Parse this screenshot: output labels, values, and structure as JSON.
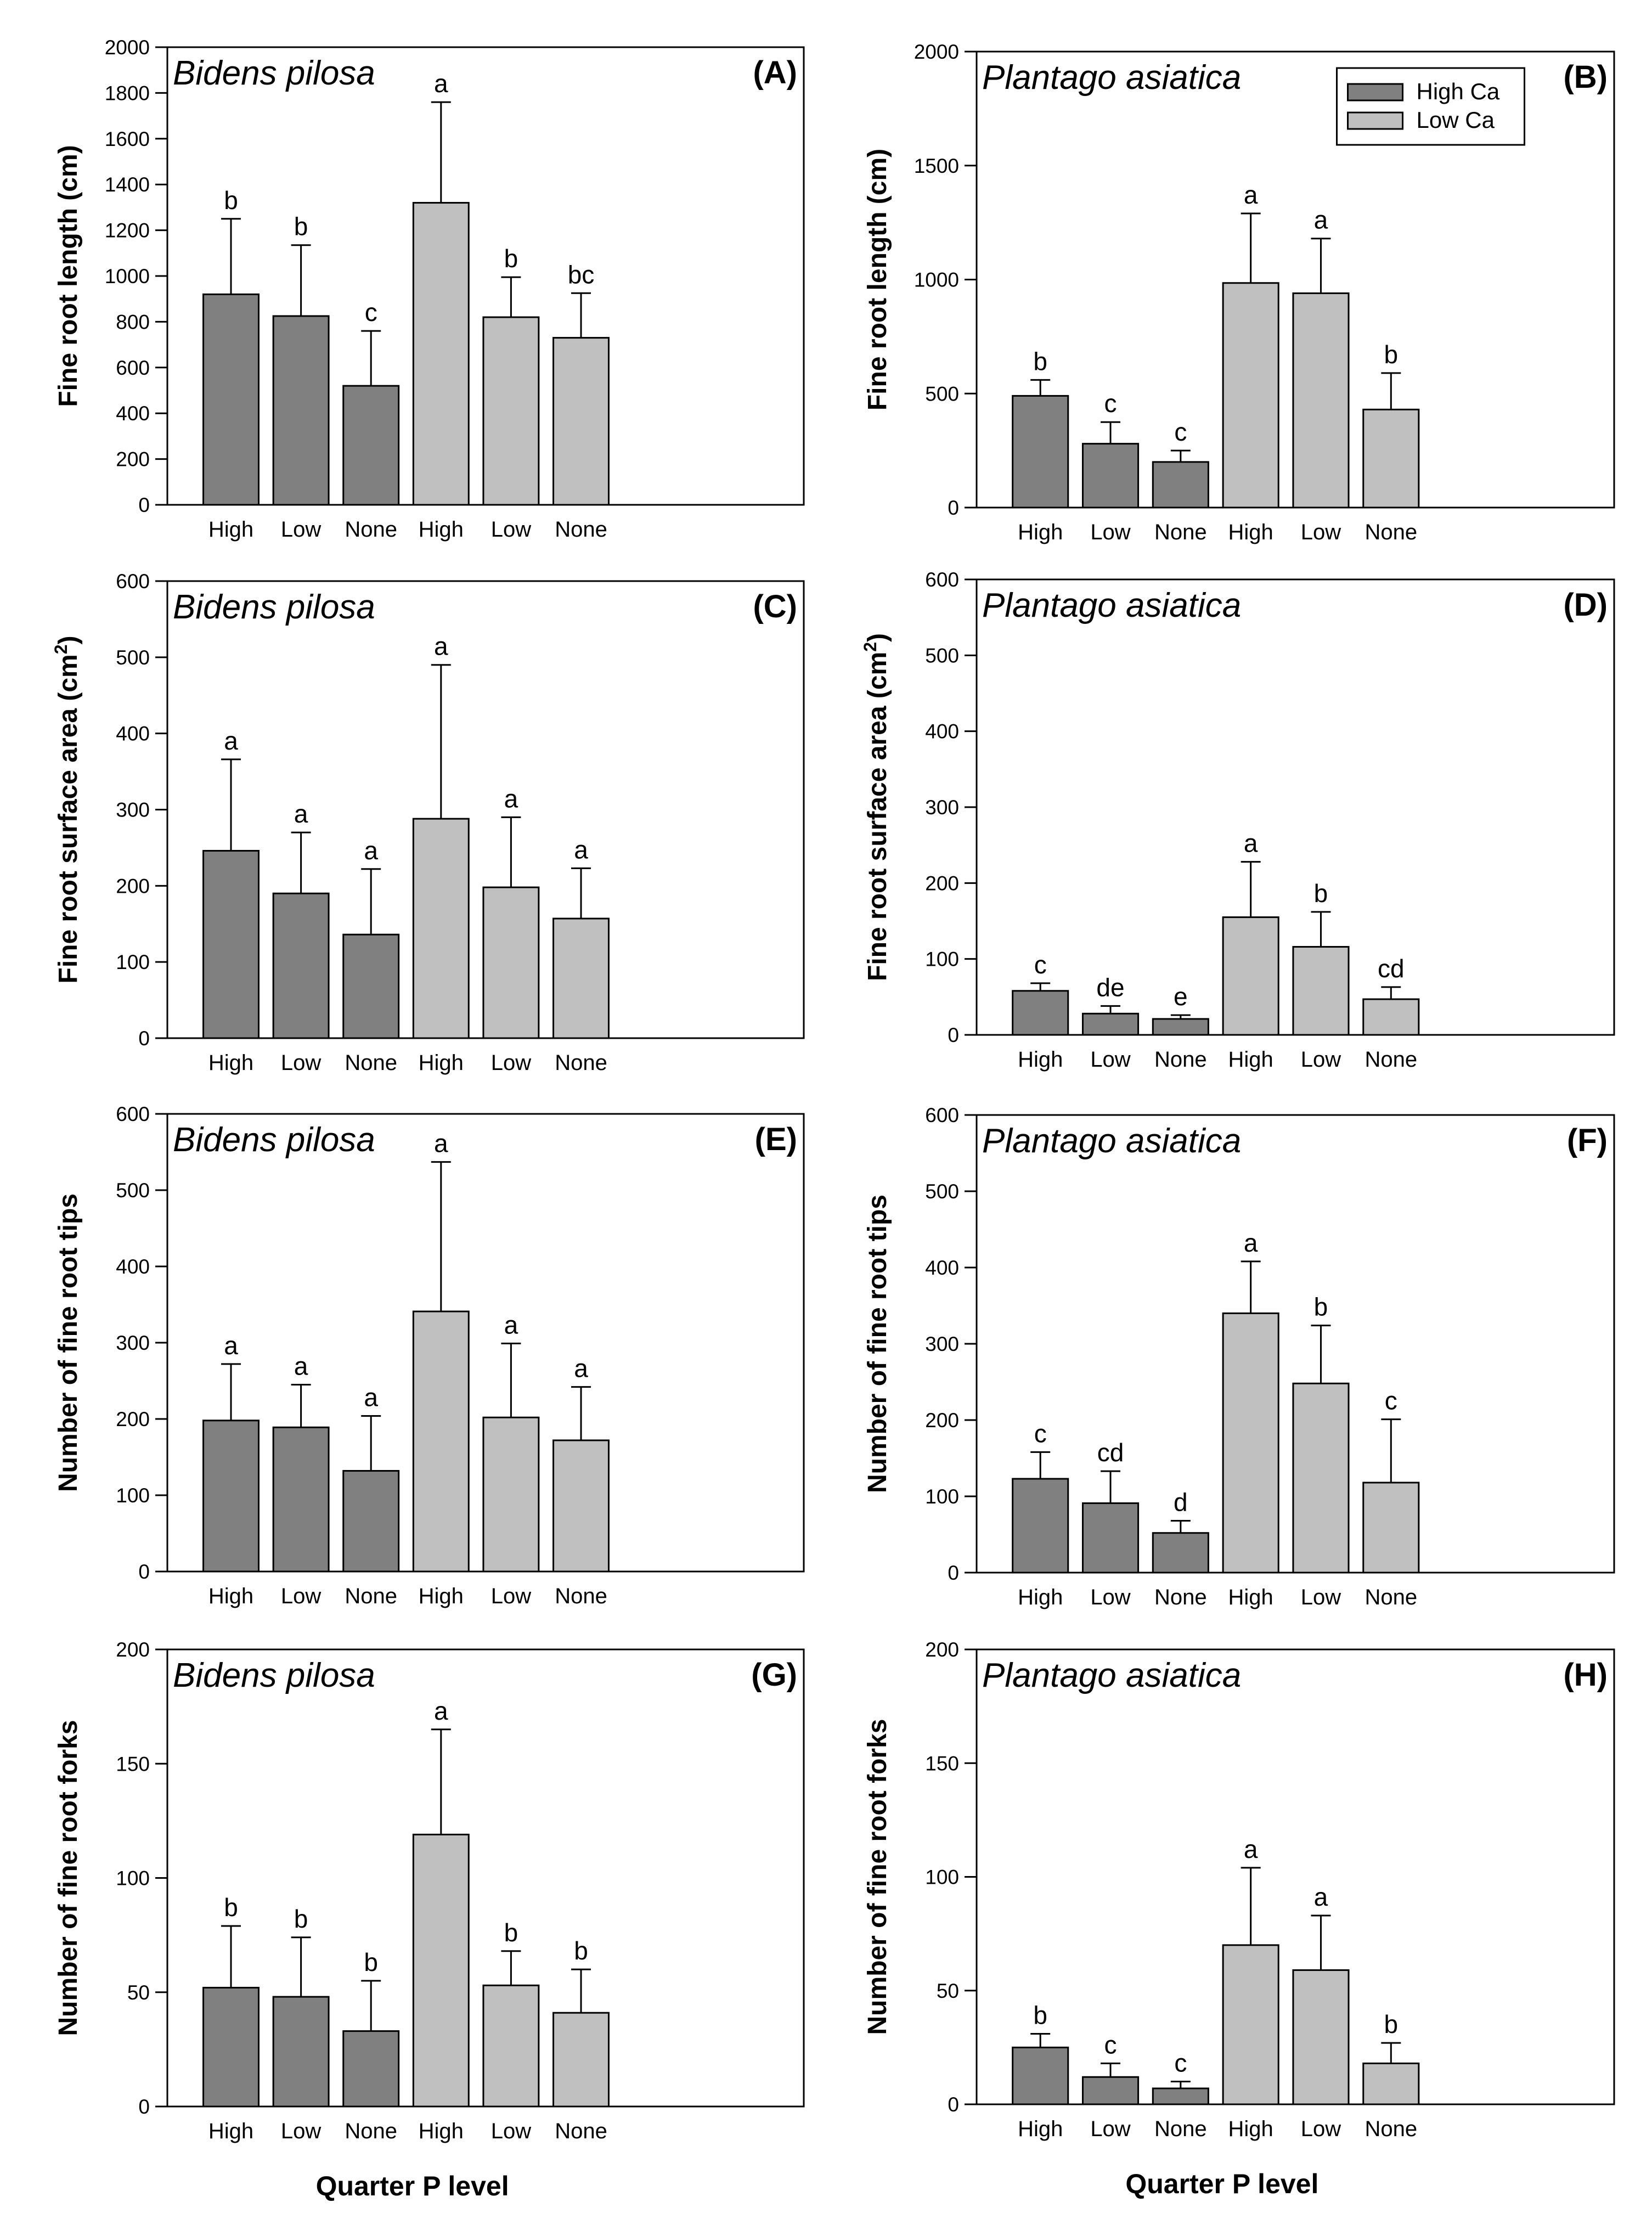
{
  "colors": {
    "high_ca": "#808080",
    "low_ca": "#c0c0c0"
  },
  "legend": {
    "entries": [
      {
        "label": "High Ca",
        "color": "#808080"
      },
      {
        "label": "Low Ca",
        "color": "#c0c0c0"
      }
    ]
  },
  "x_axis_title": "Quarter P level",
  "chart_data": [
    {
      "type": "bar",
      "panel": "(A)",
      "species": "Bidens pilosa",
      "ylabel": "Fine root length (cm)",
      "xlabel": "",
      "categories": [
        "High",
        "Low",
        "None",
        "High",
        "Low",
        "None"
      ],
      "groups": [
        "High Ca",
        "High Ca",
        "High Ca",
        "Low Ca",
        "Low Ca",
        "Low Ca"
      ],
      "values": [
        920,
        825,
        520,
        1320,
        820,
        730
      ],
      "errors": [
        330,
        310,
        240,
        440,
        175,
        195
      ],
      "letters": [
        "b",
        "b",
        "c",
        "a",
        "b",
        "bc"
      ],
      "ylim": [
        0,
        2000
      ],
      "yticks": [
        0,
        200,
        400,
        600,
        800,
        1000,
        1200,
        1400,
        1600,
        1800,
        2000
      ]
    },
    {
      "type": "bar",
      "panel": "(B)",
      "species": "Plantago asiatica",
      "ylabel": "Fine root length (cm)",
      "xlabel": "",
      "categories": [
        "High",
        "Low",
        "None",
        "High",
        "Low",
        "None"
      ],
      "groups": [
        "High Ca",
        "High Ca",
        "High Ca",
        "Low Ca",
        "Low Ca",
        "Low Ca"
      ],
      "values": [
        490,
        280,
        200,
        985,
        940,
        430
      ],
      "errors": [
        70,
        95,
        50,
        305,
        240,
        160
      ],
      "letters": [
        "b",
        "c",
        "c",
        "a",
        "a",
        "b"
      ],
      "ylim": [
        0,
        2000
      ],
      "yticks": [
        0,
        500,
        1000,
        1500,
        2000
      ],
      "legend": true
    },
    {
      "type": "bar",
      "panel": "(C)",
      "species": "Bidens pilosa",
      "ylabel": "Fine root surface area (cm",
      "ylabel_sup": "2",
      "ylabel_end": ")",
      "xlabel": "",
      "categories": [
        "High",
        "Low",
        "None",
        "High",
        "Low",
        "None"
      ],
      "groups": [
        "High Ca",
        "High Ca",
        "High Ca",
        "Low Ca",
        "Low Ca",
        "Low Ca"
      ],
      "values": [
        246,
        190,
        136,
        288,
        198,
        157
      ],
      "errors": [
        120,
        80,
        86,
        202,
        92,
        66
      ],
      "letters": [
        "a",
        "a",
        "a",
        "a",
        "a",
        "a"
      ],
      "ylim": [
        0,
        600
      ],
      "yticks": [
        0,
        100,
        200,
        300,
        400,
        500,
        600
      ]
    },
    {
      "type": "bar",
      "panel": "(D)",
      "species": "Plantago asiatica",
      "ylabel": "Fine root surface area (cm",
      "ylabel_sup": "2",
      "ylabel_end": ")",
      "xlabel": "",
      "categories": [
        "High",
        "Low",
        "None",
        "High",
        "Low",
        "None"
      ],
      "groups": [
        "High Ca",
        "High Ca",
        "High Ca",
        "Low Ca",
        "Low Ca",
        "Low Ca"
      ],
      "values": [
        58,
        28,
        21,
        155,
        116,
        47
      ],
      "errors": [
        10,
        10,
        5,
        73,
        46,
        16
      ],
      "letters": [
        "c",
        "de",
        "e",
        "a",
        "b",
        "cd"
      ],
      "ylim": [
        0,
        600
      ],
      "yticks": [
        0,
        100,
        200,
        300,
        400,
        500,
        600
      ]
    },
    {
      "type": "bar",
      "panel": "(E)",
      "species": "Bidens pilosa",
      "ylabel": "Number of fine root tips",
      "xlabel": "",
      "categories": [
        "High",
        "Low",
        "None",
        "High",
        "Low",
        "None"
      ],
      "groups": [
        "High Ca",
        "High Ca",
        "High Ca",
        "Low Ca",
        "Low Ca",
        "Low Ca"
      ],
      "values": [
        198,
        189,
        132,
        341,
        202,
        172
      ],
      "errors": [
        74,
        56,
        72,
        196,
        97,
        70
      ],
      "letters": [
        "a",
        "a",
        "a",
        "a",
        "a",
        "a"
      ],
      "ylim": [
        0,
        600
      ],
      "yticks": [
        0,
        100,
        200,
        300,
        400,
        500,
        600
      ]
    },
    {
      "type": "bar",
      "panel": "(F)",
      "species": "Plantago asiatica",
      "ylabel": "Number of fine root tips",
      "xlabel": "",
      "categories": [
        "High",
        "Low",
        "None",
        "High",
        "Low",
        "None"
      ],
      "groups": [
        "High Ca",
        "High Ca",
        "High Ca",
        "Low Ca",
        "Low Ca",
        "Low Ca"
      ],
      "values": [
        123,
        91,
        52,
        340,
        248,
        118
      ],
      "errors": [
        35,
        42,
        16,
        68,
        76,
        83
      ],
      "letters": [
        "c",
        "cd",
        "d",
        "a",
        "b",
        "c"
      ],
      "ylim": [
        0,
        600
      ],
      "yticks": [
        0,
        100,
        200,
        300,
        400,
        500,
        600
      ]
    },
    {
      "type": "bar",
      "panel": "(G)",
      "species": "Bidens pilosa",
      "ylabel": "Number of fine root forks",
      "xlabel": "Quarter P level",
      "categories": [
        "High",
        "Low",
        "None",
        "High",
        "Low",
        "None"
      ],
      "groups": [
        "High Ca",
        "High Ca",
        "High Ca",
        "Low Ca",
        "Low Ca",
        "Low Ca"
      ],
      "values": [
        52,
        48,
        33,
        119,
        53,
        41
      ],
      "errors": [
        27,
        26,
        22,
        46,
        15,
        19
      ],
      "letters": [
        "b",
        "b",
        "b",
        "a",
        "b",
        "b"
      ],
      "ylim": [
        0,
        200
      ],
      "yticks": [
        0,
        50,
        100,
        150,
        200
      ]
    },
    {
      "type": "bar",
      "panel": "(H)",
      "species": "Plantago asiatica",
      "ylabel": "Number of fine root forks",
      "xlabel": "Quarter P level",
      "categories": [
        "High",
        "Low",
        "None",
        "High",
        "Low",
        "None"
      ],
      "groups": [
        "High Ca",
        "High Ca",
        "High Ca",
        "Low Ca",
        "Low Ca",
        "Low Ca"
      ],
      "values": [
        25,
        12,
        7,
        70,
        59,
        18
      ],
      "errors": [
        6,
        6,
        3,
        34,
        24,
        9
      ],
      "letters": [
        "b",
        "c",
        "c",
        "a",
        "a",
        "b"
      ],
      "ylim": [
        0,
        200
      ],
      "yticks": [
        0,
        50,
        100,
        150,
        200
      ]
    }
  ]
}
